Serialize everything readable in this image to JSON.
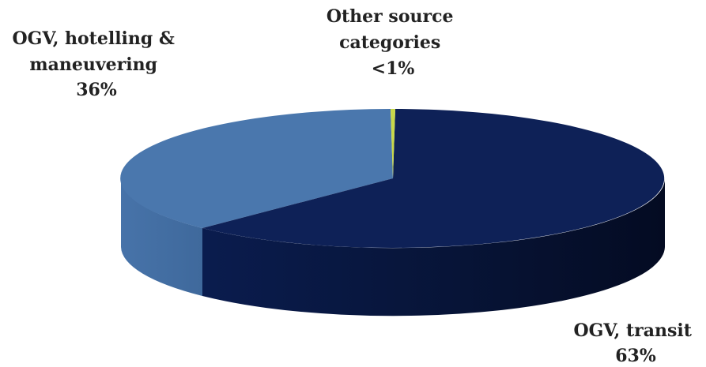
{
  "chart_data": {
    "type": "pie",
    "style": "3d",
    "slices": [
      {
        "label": "OGV, transit",
        "value": 63,
        "value_label": "63%",
        "color": "#0e2157"
      },
      {
        "label": "OGV, hotelling & maneuvering",
        "value": 36,
        "value_label": "36%",
        "color": "#4a77ad"
      },
      {
        "label": "Other source categories",
        "value": 0.5,
        "value_label": "<1%",
        "color": "#c8d84a"
      }
    ],
    "legend": "none",
    "data_labels": "outside"
  }
}
